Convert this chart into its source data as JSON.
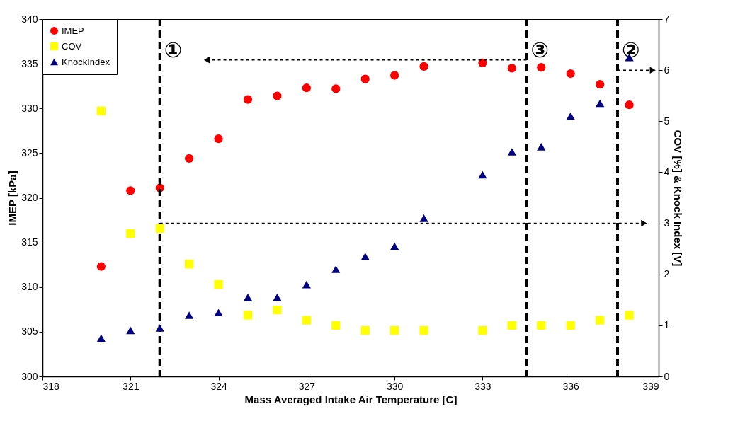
{
  "chart_data": {
    "type": "scatter",
    "xlabel": "Mass Averaged Intake Air Temperature [C]",
    "ylabel": "IMEP [kPa]",
    "y2label": "COV [%] & Knock Index [V]",
    "x": [
      320,
      321,
      322,
      323,
      324,
      325,
      326,
      327,
      328,
      329,
      330,
      331,
      333,
      334,
      335,
      336,
      337,
      338
    ],
    "series": [
      {
        "name": "IMEP",
        "color": "#ff0000",
        "marker": "circle",
        "values": [
          312.3,
          320.8,
          321.1,
          324.4,
          326.6,
          331.0,
          331.4,
          332.3,
          332.2,
          333.3,
          333.7,
          334.7,
          335.1,
          334.5,
          334.6,
          333.9,
          332.7,
          330.4
        ]
      },
      {
        "name": "COV",
        "color": "#ffff00",
        "marker": "square",
        "axis": "y2",
        "values": [
          5.2,
          2.8,
          2.9,
          2.2,
          1.8,
          1.2,
          1.3,
          1.1,
          1.0,
          0.9,
          0.9,
          0.9,
          0.9,
          1.0,
          1.0,
          1.0,
          1.1,
          1.2
        ]
      },
      {
        "name": "KnockIndex",
        "color": "#000080",
        "marker": "triangle",
        "axis": "y2",
        "values": [
          0.75,
          0.9,
          0.95,
          1.2,
          1.25,
          1.55,
          1.55,
          1.8,
          2.1,
          2.35,
          2.55,
          3.1,
          3.95,
          4.4,
          4.5,
          5.1,
          5.35,
          6.25
        ]
      }
    ],
    "xlim": [
      318,
      339
    ],
    "xticks": [
      318,
      321,
      324,
      327,
      330,
      333,
      336,
      339
    ],
    "ylim": [
      300,
      340
    ],
    "yticks": [
      300,
      305,
      310,
      315,
      320,
      325,
      330,
      335,
      340
    ],
    "y2lim": [
      0,
      7
    ],
    "y2ticks": [
      0,
      1,
      2,
      3,
      4,
      5,
      6,
      7
    ],
    "ref_lines": [
      {
        "axis": "x",
        "value": 322,
        "label": "①",
        "color": "#000000",
        "line_style": "dashed"
      },
      {
        "axis": "x",
        "value": 334.5,
        "label": "③",
        "color": "#000000",
        "line_style": "dashed"
      },
      {
        "axis": "x",
        "value": 337.6,
        "label": "②",
        "color": "#000000",
        "line_style": "dashed"
      }
    ],
    "legend": "top left"
  }
}
